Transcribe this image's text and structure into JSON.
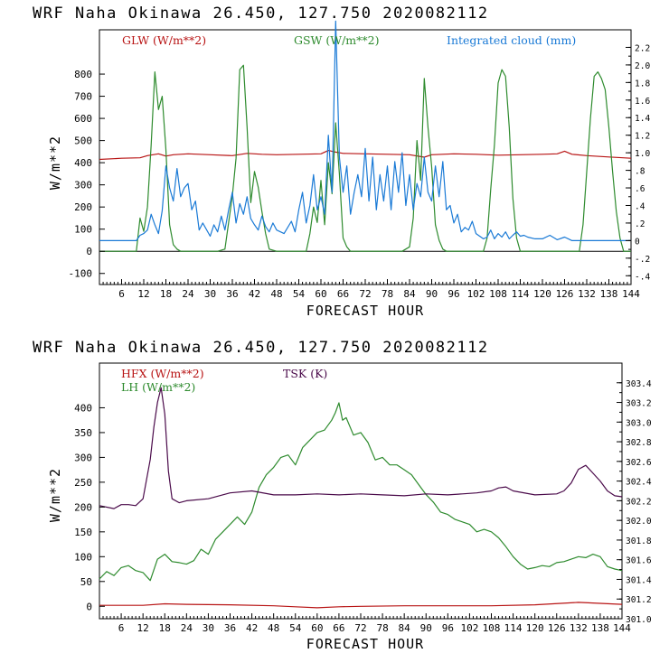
{
  "chart_data": [
    {
      "type": "line",
      "title": "WRF  Naha Okinawa  26.450, 127.750  2020082112",
      "xlabel": "FORECAST HOUR",
      "ylabel": "W/m**2",
      "xlim": [
        0,
        144
      ],
      "ylim": [
        -150,
        1000
      ],
      "xticks": [
        6,
        12,
        18,
        24,
        30,
        36,
        42,
        48,
        54,
        60,
        66,
        72,
        78,
        84,
        90,
        96,
        102,
        108,
        114,
        120,
        126,
        132,
        138,
        144
      ],
      "xtick_labels": [
        "6",
        "12",
        "18",
        "24",
        "30",
        "36",
        "42",
        "48",
        "54",
        "60",
        "66",
        "72",
        "78",
        "84",
        "90",
        "96",
        "102",
        "108",
        "114",
        "120",
        "126",
        "132",
        "138",
        "144"
      ],
      "yticks": [
        -100,
        0,
        100,
        200,
        300,
        400,
        500,
        600,
        700,
        800
      ],
      "ytick_labels": [
        "-100",
        "0",
        "100",
        "200",
        "300",
        "400",
        "500",
        "600",
        "700",
        "800"
      ],
      "y2lim": [
        -0.5,
        2.4
      ],
      "y2ticks": [
        -0.4,
        -0.2,
        0,
        0.2,
        0.4,
        0.6,
        0.8,
        1.0,
        1.2,
        1.4,
        1.6,
        1.8,
        2.0,
        2.2
      ],
      "y2tick_labels": [
        "-.4",
        "-.2",
        "0",
        ".2",
        ".4",
        ".6",
        ".8",
        "1.0",
        "1.2",
        "1.4",
        "1.6",
        "1.8",
        "2.0",
        "2.2"
      ],
      "series": [
        {
          "name": "GLW (W/m**2)",
          "color": "#b81414",
          "axis": "left",
          "x": [
            0,
            6,
            11,
            13,
            16,
            18,
            20,
            24,
            30,
            36,
            40,
            44,
            48,
            54,
            60,
            62,
            64,
            66,
            72,
            78,
            84,
            88,
            90,
            96,
            102,
            108,
            114,
            120,
            124,
            126,
            128,
            132,
            138,
            144
          ],
          "y": [
            415,
            420,
            422,
            432,
            440,
            430,
            436,
            440,
            436,
            432,
            442,
            438,
            436,
            438,
            440,
            455,
            448,
            442,
            440,
            438,
            436,
            425,
            436,
            440,
            438,
            434,
            436,
            438,
            440,
            452,
            438,
            432,
            426,
            420
          ]
        },
        {
          "name": "GSW (W/m**2)",
          "color": "#2e8b2e",
          "axis": "left",
          "x": [
            0,
            10,
            11,
            12,
            13,
            14,
            15,
            16,
            17,
            18,
            19,
            20,
            21,
            22,
            24,
            26,
            28,
            30,
            32,
            34,
            35,
            36,
            37,
            38,
            39,
            40,
            41,
            42,
            43,
            44,
            45,
            46,
            48,
            50,
            52,
            54,
            56,
            57,
            58,
            59,
            60,
            61,
            62,
            63,
            64,
            65,
            66,
            67,
            68,
            70,
            72,
            74,
            76,
            78,
            80,
            82,
            84,
            85,
            86,
            87,
            88,
            89,
            90,
            91,
            92,
            93,
            94,
            96,
            98,
            100,
            102,
            104,
            105,
            106,
            107,
            108,
            109,
            110,
            111,
            112,
            113,
            114,
            115,
            116,
            120,
            124,
            126,
            128,
            130,
            131,
            132,
            133,
            134,
            135,
            136,
            137,
            138,
            139,
            140,
            141,
            142,
            144
          ],
          "y": [
            0,
            0,
            150,
            90,
            200,
            480,
            810,
            640,
            700,
            460,
            120,
            30,
            10,
            0,
            0,
            0,
            0,
            0,
            0,
            10,
            130,
            250,
            420,
            820,
            840,
            560,
            220,
            360,
            290,
            180,
            80,
            10,
            0,
            0,
            0,
            0,
            0,
            80,
            200,
            130,
            320,
            120,
            400,
            260,
            580,
            350,
            60,
            20,
            0,
            0,
            0,
            0,
            0,
            0,
            0,
            0,
            20,
            150,
            500,
            320,
            780,
            560,
            380,
            120,
            50,
            10,
            0,
            0,
            0,
            0,
            0,
            0,
            60,
            280,
            480,
            760,
            820,
            790,
            560,
            240,
            60,
            0,
            0,
            0,
            0,
            0,
            0,
            0,
            0,
            120,
            360,
            600,
            790,
            810,
            780,
            730,
            560,
            360,
            180,
            60,
            0,
            0
          ]
        },
        {
          "name": "Integrated cloud (mm)",
          "color": "#1a7ad6",
          "axis": "right",
          "x": [
            0,
            10,
            11,
            12,
            13,
            14,
            15,
            16,
            17,
            18,
            19,
            20,
            21,
            22,
            23,
            24,
            25,
            26,
            27,
            28,
            30,
            31,
            32,
            33,
            34,
            35,
            36,
            37,
            38,
            39,
            40,
            41,
            42,
            43,
            44,
            45,
            46,
            47,
            48,
            50,
            52,
            53,
            54,
            55,
            56,
            57,
            58,
            59,
            60,
            61,
            62,
            63,
            64,
            65,
            66,
            67,
            68,
            69,
            70,
            71,
            72,
            73,
            74,
            75,
            76,
            77,
            78,
            79,
            80,
            81,
            82,
            83,
            84,
            85,
            86,
            87,
            88,
            89,
            90,
            91,
            92,
            93,
            94,
            95,
            96,
            97,
            98,
            99,
            100,
            101,
            102,
            103,
            104,
            105,
            106,
            107,
            108,
            109,
            110,
            111,
            112,
            113,
            114,
            115,
            116,
            118,
            120,
            122,
            124,
            126,
            127,
            128,
            144
          ],
          "y": [
            0,
            0,
            0.06,
            0.08,
            0.12,
            0.3,
            0.18,
            0.08,
            0.34,
            0.85,
            0.6,
            0.45,
            0.82,
            0.5,
            0.6,
            0.65,
            0.35,
            0.45,
            0.12,
            0.2,
            0.05,
            0.18,
            0.1,
            0.28,
            0.12,
            0.35,
            0.55,
            0.2,
            0.42,
            0.3,
            0.5,
            0.25,
            0.18,
            0.12,
            0.28,
            0.16,
            0.1,
            0.2,
            0.12,
            0.08,
            0.22,
            0.1,
            0.35,
            0.55,
            0.2,
            0.4,
            0.75,
            0.35,
            0.5,
            0.3,
            1.2,
            0.55,
            2.5,
            0.95,
            0.55,
            0.85,
            0.3,
            0.55,
            0.75,
            0.5,
            1.05,
            0.45,
            0.95,
            0.35,
            0.75,
            0.45,
            0.85,
            0.35,
            0.9,
            0.55,
            1.0,
            0.4,
            0.75,
            0.35,
            0.65,
            0.5,
            0.95,
            0.55,
            0.45,
            0.85,
            0.5,
            0.9,
            0.35,
            0.4,
            0.2,
            0.3,
            0.1,
            0.15,
            0.12,
            0.22,
            0.08,
            0.05,
            0.02,
            0.04,
            0.12,
            0.02,
            0.08,
            0.04,
            0.1,
            0.02,
            0.06,
            0.1,
            0.05,
            0.06,
            0.04,
            0.02,
            0.02,
            0.06,
            0.01,
            0.04,
            0.02,
            0,
            0
          ]
        }
      ]
    },
    {
      "type": "line",
      "title": "WRF  Naha Okinawa  26.450, 127.750  2020082112",
      "xlabel": "FORECAST HOUR",
      "ylabel": "W/m**2",
      "xlim": [
        0,
        144
      ],
      "ylim": [
        -25,
        490
      ],
      "xticks": [
        6,
        12,
        18,
        24,
        30,
        36,
        42,
        48,
        54,
        60,
        66,
        72,
        78,
        84,
        90,
        96,
        102,
        108,
        114,
        120,
        126,
        132,
        138,
        144
      ],
      "xtick_labels": [
        "6",
        "12",
        "18",
        "24",
        "30",
        "36",
        "42",
        "48",
        "54",
        "60",
        "66",
        "72",
        "78",
        "84",
        "90",
        "96",
        "102",
        "108",
        "114",
        "120",
        "126",
        "132",
        "138",
        "144"
      ],
      "yticks": [
        0,
        50,
        100,
        150,
        200,
        250,
        300,
        350,
        400
      ],
      "ytick_labels": [
        "0",
        "50",
        "100",
        "150",
        "200",
        "250",
        "300",
        "350",
        "400"
      ],
      "y2lim": [
        301.0,
        303.6
      ],
      "y2ticks": [
        301.0,
        301.2,
        301.4,
        301.6,
        301.8,
        302.0,
        302.2,
        302.4,
        302.6,
        302.8,
        303.0,
        303.2,
        303.4
      ],
      "y2tick_labels": [
        "301.0",
        "301.2",
        "301.4",
        "301.6",
        "301.8",
        "302.0",
        "302.2",
        "302.4",
        "302.6",
        "302.8",
        "303.0",
        "303.2",
        "303.4"
      ],
      "series": [
        {
          "name": "HFX (W/m**2)",
          "color": "#b81414",
          "axis": "left",
          "x": [
            0,
            12,
            18,
            24,
            36,
            48,
            54,
            60,
            66,
            72,
            84,
            96,
            108,
            120,
            132,
            138,
            144
          ],
          "y": [
            2,
            2,
            5,
            4,
            3,
            1,
            -1,
            -3,
            -1,
            0,
            1,
            1,
            1,
            3,
            8,
            6,
            4
          ]
        },
        {
          "name": "LH  (W/m**2)",
          "color": "#2e8b2e",
          "axis": "left",
          "x": [
            0,
            2,
            4,
            6,
            8,
            10,
            12,
            14,
            16,
            18,
            20,
            22,
            24,
            26,
            28,
            30,
            32,
            34,
            36,
            38,
            40,
            42,
            44,
            46,
            48,
            50,
            52,
            54,
            56,
            58,
            60,
            62,
            64,
            65,
            66,
            67,
            68,
            70,
            72,
            74,
            76,
            78,
            80,
            82,
            84,
            86,
            88,
            90,
            92,
            94,
            96,
            98,
            100,
            102,
            104,
            106,
            108,
            110,
            112,
            114,
            116,
            118,
            120,
            122,
            124,
            126,
            128,
            130,
            132,
            134,
            136,
            138,
            140,
            142,
            144
          ],
          "y": [
            55,
            70,
            62,
            78,
            82,
            72,
            68,
            52,
            95,
            105,
            90,
            88,
            85,
            92,
            115,
            105,
            135,
            150,
            165,
            180,
            165,
            190,
            240,
            265,
            280,
            300,
            305,
            285,
            320,
            335,
            350,
            355,
            375,
            390,
            410,
            375,
            380,
            345,
            350,
            330,
            295,
            300,
            285,
            285,
            275,
            265,
            245,
            225,
            210,
            190,
            185,
            175,
            170,
            165,
            150,
            155,
            150,
            138,
            120,
            100,
            85,
            75,
            78,
            82,
            80,
            88,
            90,
            95,
            100,
            98,
            105,
            100,
            80,
            75,
            72
          ]
        },
        {
          "name": "TSK (K)",
          "color": "#4a0a4a",
          "axis": "right",
          "x": [
            0,
            4,
            6,
            8,
            10,
            12,
            14,
            15,
            16,
            17,
            18,
            19,
            20,
            22,
            24,
            30,
            36,
            42,
            48,
            54,
            60,
            66,
            72,
            78,
            84,
            90,
            96,
            100,
            104,
            108,
            110,
            112,
            114,
            120,
            126,
            128,
            130,
            132,
            134,
            136,
            138,
            140,
            142,
            144
          ],
          "y": [
            302.15,
            302.12,
            302.16,
            302.16,
            302.15,
            302.22,
            302.62,
            302.95,
            303.2,
            303.35,
            303.08,
            302.5,
            302.22,
            302.18,
            302.2,
            302.22,
            302.28,
            302.3,
            302.26,
            302.26,
            302.27,
            302.26,
            302.27,
            302.26,
            302.25,
            302.27,
            302.26,
            302.27,
            302.28,
            302.3,
            302.33,
            302.34,
            302.3,
            302.26,
            302.27,
            302.3,
            302.38,
            302.52,
            302.56,
            302.48,
            302.4,
            302.3,
            302.25,
            302.24
          ]
        }
      ]
    }
  ]
}
